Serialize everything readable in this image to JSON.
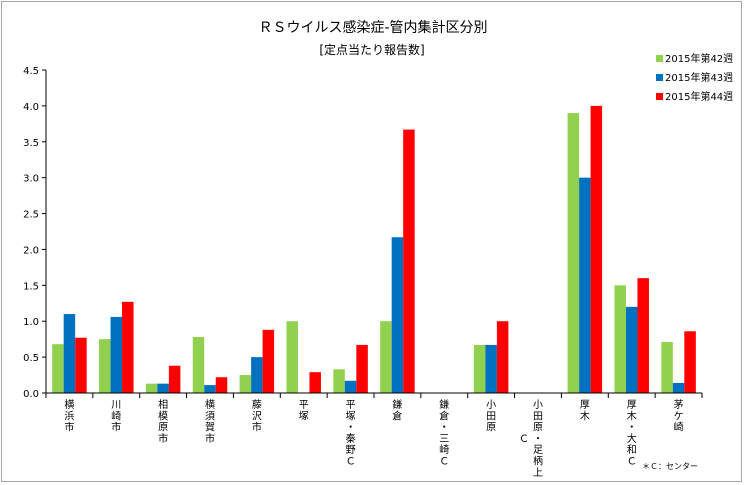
{
  "chart_data": {
    "type": "bar",
    "title": "ＲＳウイルス感染症-管内集計区分別",
    "subtitle": "[定点当たり報告数]",
    "xlabel": "",
    "ylabel": "",
    "ylim": [
      0,
      4.5
    ],
    "yticks": [
      "0.0",
      "0.5",
      "1.0",
      "1.5",
      "2.0",
      "2.5",
      "3.0",
      "3.5",
      "4.0",
      "4.5"
    ],
    "grid": false,
    "legend_position": "top-right",
    "categories": [
      "横浜市",
      "川崎市",
      "相模原市",
      "横須賀市",
      "藤沢市",
      "平塚",
      "平塚・秦野Ｃ",
      "鎌倉",
      "鎌倉・三崎Ｃ",
      "小田原",
      "小田原・足柄上Ｃ",
      "厚木",
      "厚木・大和Ｃ",
      "茅ケ崎"
    ],
    "series": [
      {
        "name": "2015年第42週",
        "color": "#92d050",
        "values": [
          0.68,
          0.75,
          0.13,
          0.78,
          0.25,
          1.0,
          0.33,
          1.0,
          0,
          0.67,
          0,
          3.9,
          1.5,
          0.71
        ]
      },
      {
        "name": "2015年第43週",
        "color": "#0070c0",
        "values": [
          1.1,
          1.06,
          0.13,
          0.11,
          0.5,
          0,
          0.17,
          2.17,
          0,
          0.67,
          0,
          3.0,
          1.2,
          0.14
        ]
      },
      {
        "name": "2015年第44週",
        "color": "#ff0000",
        "values": [
          0.77,
          1.27,
          0.38,
          0.22,
          0.88,
          0.29,
          0.67,
          3.67,
          0,
          1.0,
          0,
          4.0,
          1.6,
          0.86
        ]
      }
    ],
    "note": "＊Ｃ：センター"
  }
}
